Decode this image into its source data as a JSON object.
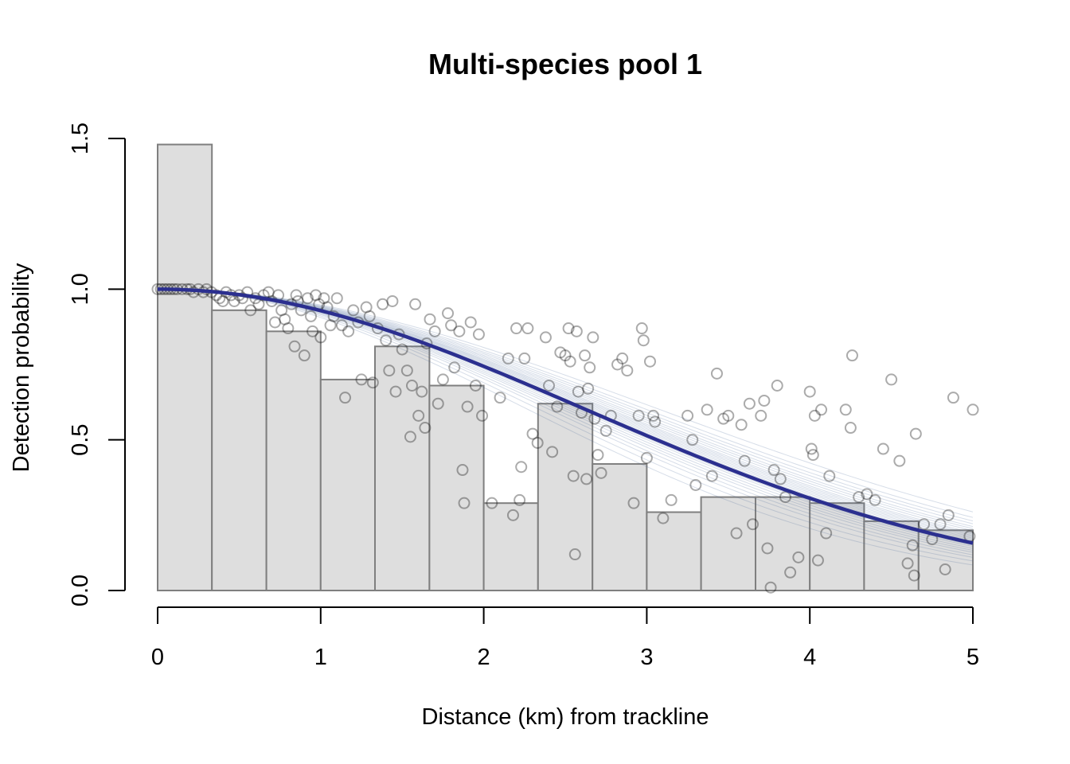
{
  "chart_data": {
    "type": "bar",
    "title": "Multi-species pool 1",
    "xlabel": "Distance (km) from trackline",
    "ylabel": "Detection probability",
    "xlim": [
      0,
      5
    ],
    "ylim": [
      0,
      1.5
    ],
    "x_ticks": [
      "0",
      "1",
      "2",
      "3",
      "4",
      "5"
    ],
    "y_ticks": [
      "0.0",
      "0.5",
      "1.0",
      "1.5"
    ],
    "histogram": {
      "bin_width": 0.3333,
      "bins": [
        {
          "x0": 0.0,
          "x1": 0.333,
          "value": 1.48
        },
        {
          "x0": 0.333,
          "x1": 0.667,
          "value": 0.93
        },
        {
          "x0": 0.667,
          "x1": 1.0,
          "value": 0.86
        },
        {
          "x0": 1.0,
          "x1": 1.333,
          "value": 0.7
        },
        {
          "x0": 1.333,
          "x1": 1.667,
          "value": 0.81
        },
        {
          "x0": 1.667,
          "x1": 2.0,
          "value": 0.68
        },
        {
          "x0": 2.0,
          "x1": 2.333,
          "value": 0.29
        },
        {
          "x0": 2.333,
          "x1": 2.667,
          "value": 0.62
        },
        {
          "x0": 2.667,
          "x1": 3.0,
          "value": 0.42
        },
        {
          "x0": 3.0,
          "x1": 3.333,
          "value": 0.26
        },
        {
          "x0": 3.333,
          "x1": 3.667,
          "value": 0.31
        },
        {
          "x0": 3.667,
          "x1": 4.0,
          "value": 0.31
        },
        {
          "x0": 4.0,
          "x1": 4.333,
          "value": 0.29
        },
        {
          "x0": 4.333,
          "x1": 4.667,
          "value": 0.23
        },
        {
          "x0": 4.667,
          "x1": 5.0,
          "value": 0.2
        }
      ]
    },
    "fitted_curve": {
      "model": "half-normal",
      "sigma": 2.6,
      "color": "#2b2f8f"
    },
    "bootstrap_curves": {
      "color": "#4664a0",
      "sigmas": [
        2.25,
        2.32,
        2.38,
        2.42,
        2.46,
        2.49,
        2.52,
        2.55,
        2.57,
        2.59,
        2.61,
        2.63,
        2.65,
        2.67,
        2.69,
        2.71,
        2.73,
        2.75,
        2.78,
        2.81,
        2.84,
        2.88,
        2.92,
        2.97,
        3.05
      ]
    },
    "points": [
      [
        0.0,
        1.0
      ],
      [
        0.02,
        1.0
      ],
      [
        0.04,
        1.0
      ],
      [
        0.06,
        1.0
      ],
      [
        0.08,
        1.0
      ],
      [
        0.1,
        1.0
      ],
      [
        0.12,
        1.0
      ],
      [
        0.15,
        1.0
      ],
      [
        0.18,
        1.0
      ],
      [
        0.2,
        1.0
      ],
      [
        0.22,
        0.99
      ],
      [
        0.25,
        1.0
      ],
      [
        0.28,
        0.99
      ],
      [
        0.3,
        1.0
      ],
      [
        0.33,
        0.99
      ],
      [
        0.36,
        0.98
      ],
      [
        0.38,
        0.97
      ],
      [
        0.4,
        0.96
      ],
      [
        0.42,
        0.99
      ],
      [
        0.45,
        0.98
      ],
      [
        0.47,
        0.96
      ],
      [
        0.5,
        0.98
      ],
      [
        0.52,
        0.97
      ],
      [
        0.55,
        0.99
      ],
      [
        0.57,
        0.93
      ],
      [
        0.6,
        0.97
      ],
      [
        0.62,
        0.95
      ],
      [
        0.65,
        0.98
      ],
      [
        0.68,
        0.99
      ],
      [
        0.7,
        0.96
      ],
      [
        0.72,
        0.89
      ],
      [
        0.74,
        0.98
      ],
      [
        0.76,
        0.93
      ],
      [
        0.78,
        0.9
      ],
      [
        0.8,
        0.87
      ],
      [
        0.82,
        0.95
      ],
      [
        0.84,
        0.81
      ],
      [
        0.85,
        0.98
      ],
      [
        0.86,
        0.96
      ],
      [
        0.88,
        0.93
      ],
      [
        0.9,
        0.78
      ],
      [
        0.92,
        0.97
      ],
      [
        0.94,
        0.91
      ],
      [
        0.95,
        0.86
      ],
      [
        0.97,
        0.98
      ],
      [
        0.99,
        0.95
      ],
      [
        1.0,
        0.84
      ],
      [
        1.02,
        0.97
      ],
      [
        1.04,
        0.94
      ],
      [
        1.06,
        0.88
      ],
      [
        1.08,
        0.91
      ],
      [
        1.1,
        0.97
      ],
      [
        1.13,
        0.88
      ],
      [
        1.15,
        0.64
      ],
      [
        1.17,
        0.86
      ],
      [
        1.2,
        0.93
      ],
      [
        1.23,
        0.89
      ],
      [
        1.25,
        0.7
      ],
      [
        1.28,
        0.94
      ],
      [
        1.3,
        0.91
      ],
      [
        1.32,
        0.69
      ],
      [
        1.35,
        0.87
      ],
      [
        1.38,
        0.95
      ],
      [
        1.4,
        0.83
      ],
      [
        1.42,
        0.73
      ],
      [
        1.44,
        0.96
      ],
      [
        1.46,
        0.66
      ],
      [
        1.48,
        0.85
      ],
      [
        1.5,
        0.8
      ],
      [
        1.53,
        0.73
      ],
      [
        1.55,
        0.51
      ],
      [
        1.56,
        0.68
      ],
      [
        1.58,
        0.95
      ],
      [
        1.6,
        0.58
      ],
      [
        1.62,
        0.66
      ],
      [
        1.64,
        0.54
      ],
      [
        1.65,
        0.82
      ],
      [
        1.67,
        0.9
      ],
      [
        1.7,
        0.86
      ],
      [
        1.72,
        0.62
      ],
      [
        1.75,
        0.7
      ],
      [
        1.78,
        0.92
      ],
      [
        1.8,
        0.88
      ],
      [
        1.82,
        0.74
      ],
      [
        1.85,
        0.86
      ],
      [
        1.87,
        0.4
      ],
      [
        1.88,
        0.29
      ],
      [
        1.9,
        0.61
      ],
      [
        1.92,
        0.89
      ],
      [
        1.95,
        0.68
      ],
      [
        1.97,
        0.85
      ],
      [
        1.99,
        0.58
      ],
      [
        2.05,
        0.29
      ],
      [
        2.1,
        0.64
      ],
      [
        2.15,
        0.77
      ],
      [
        2.18,
        0.25
      ],
      [
        2.2,
        0.87
      ],
      [
        2.22,
        0.3
      ],
      [
        2.23,
        0.41
      ],
      [
        2.25,
        0.77
      ],
      [
        2.27,
        0.87
      ],
      [
        2.3,
        0.52
      ],
      [
        2.33,
        0.49
      ],
      [
        2.38,
        0.84
      ],
      [
        2.4,
        0.68
      ],
      [
        2.42,
        0.46
      ],
      [
        2.45,
        0.61
      ],
      [
        2.47,
        0.79
      ],
      [
        2.5,
        0.78
      ],
      [
        2.52,
        0.87
      ],
      [
        2.53,
        0.76
      ],
      [
        2.55,
        0.38
      ],
      [
        2.56,
        0.12
      ],
      [
        2.57,
        0.86
      ],
      [
        2.58,
        0.66
      ],
      [
        2.6,
        0.59
      ],
      [
        2.62,
        0.78
      ],
      [
        2.63,
        0.37
      ],
      [
        2.64,
        0.67
      ],
      [
        2.65,
        0.74
      ],
      [
        2.67,
        0.84
      ],
      [
        2.68,
        0.57
      ],
      [
        2.7,
        0.45
      ],
      [
        2.72,
        0.39
      ],
      [
        2.75,
        0.53
      ],
      [
        2.78,
        0.58
      ],
      [
        2.82,
        0.75
      ],
      [
        2.85,
        0.77
      ],
      [
        2.88,
        0.73
      ],
      [
        2.92,
        0.29
      ],
      [
        2.95,
        0.58
      ],
      [
        2.97,
        0.87
      ],
      [
        2.98,
        0.83
      ],
      [
        3.0,
        0.44
      ],
      [
        3.02,
        0.76
      ],
      [
        3.04,
        0.58
      ],
      [
        3.05,
        0.56
      ],
      [
        3.1,
        0.24
      ],
      [
        3.15,
        0.3
      ],
      [
        3.25,
        0.58
      ],
      [
        3.28,
        0.5
      ],
      [
        3.3,
        0.35
      ],
      [
        3.37,
        0.6
      ],
      [
        3.4,
        0.38
      ],
      [
        3.43,
        0.72
      ],
      [
        3.47,
        0.57
      ],
      [
        3.5,
        0.58
      ],
      [
        3.55,
        0.19
      ],
      [
        3.58,
        0.55
      ],
      [
        3.6,
        0.43
      ],
      [
        3.63,
        0.62
      ],
      [
        3.65,
        0.22
      ],
      [
        3.7,
        0.58
      ],
      [
        3.72,
        0.63
      ],
      [
        3.74,
        0.14
      ],
      [
        3.76,
        0.01
      ],
      [
        3.78,
        0.4
      ],
      [
        3.8,
        0.68
      ],
      [
        3.82,
        0.37
      ],
      [
        3.85,
        0.31
      ],
      [
        3.88,
        0.06
      ],
      [
        3.93,
        0.11
      ],
      [
        4.0,
        0.66
      ],
      [
        4.01,
        0.47
      ],
      [
        4.02,
        0.45
      ],
      [
        4.03,
        0.58
      ],
      [
        4.05,
        0.1
      ],
      [
        4.07,
        0.6
      ],
      [
        4.1,
        0.19
      ],
      [
        4.12,
        0.38
      ],
      [
        4.22,
        0.6
      ],
      [
        4.25,
        0.54
      ],
      [
        4.26,
        0.78
      ],
      [
        4.3,
        0.31
      ],
      [
        4.35,
        0.32
      ],
      [
        4.4,
        0.3
      ],
      [
        4.45,
        0.47
      ],
      [
        4.5,
        0.7
      ],
      [
        4.55,
        0.43
      ],
      [
        4.6,
        0.09
      ],
      [
        4.63,
        0.15
      ],
      [
        4.64,
        0.05
      ],
      [
        4.65,
        0.52
      ],
      [
        4.7,
        0.22
      ],
      [
        4.75,
        0.17
      ],
      [
        4.8,
        0.22
      ],
      [
        4.83,
        0.07
      ],
      [
        4.85,
        0.25
      ],
      [
        4.88,
        0.64
      ],
      [
        4.98,
        0.18
      ],
      [
        5.0,
        0.6
      ]
    ]
  }
}
